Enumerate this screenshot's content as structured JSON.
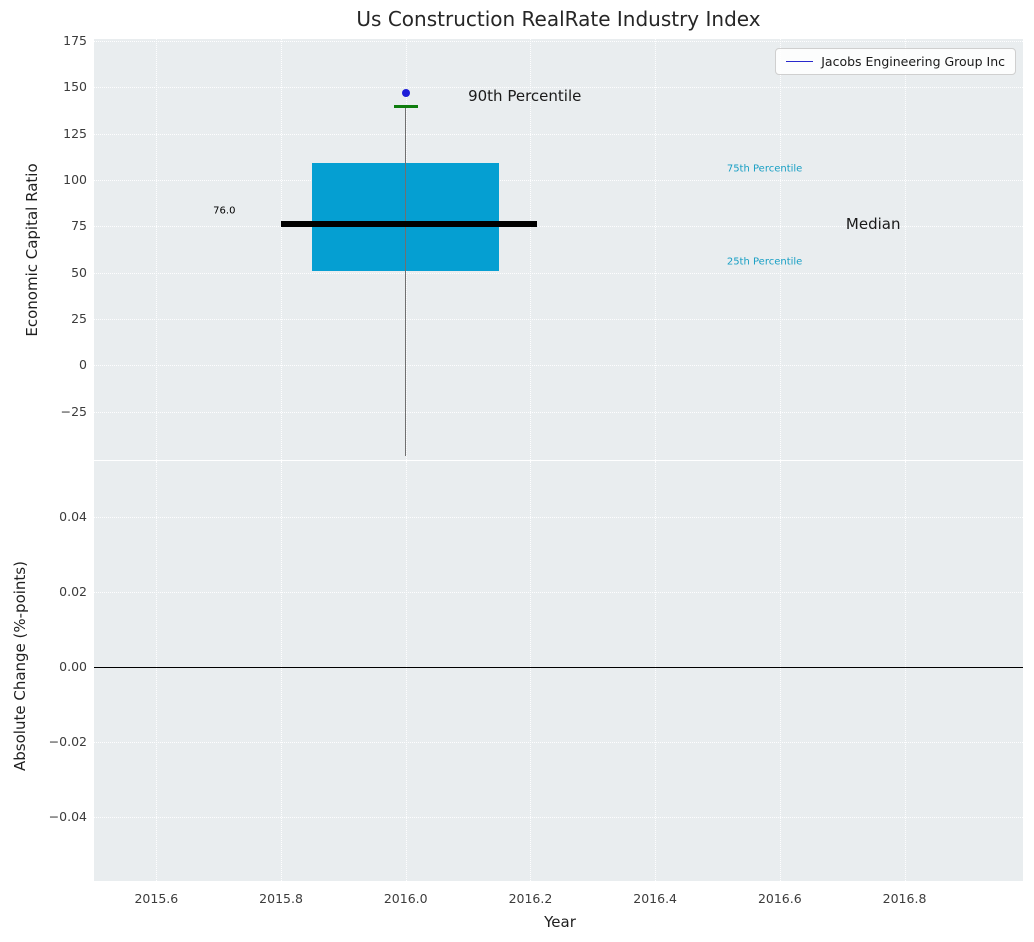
{
  "colors": {
    "plot_bg": "#e9edef",
    "grid": "#ffffff",
    "tick_text": "#3c3c3c"
  },
  "chart_data": [
    {
      "type": "box",
      "title": "Us Construction RealRate Industry Index",
      "ylabel": "Economic Capital Ratio",
      "xlim": [
        2015.5,
        2016.99
      ],
      "ylim": [
        -51,
        176
      ],
      "grid": true,
      "legend": {
        "position": "upper right",
        "entries": [
          {
            "label": "Jacobs Engineering Group Inc",
            "color": "#2828cc"
          }
        ]
      },
      "yticks": [
        {
          "value": 175,
          "label": "175"
        },
        {
          "value": 150,
          "label": "150"
        },
        {
          "value": 125,
          "label": "125"
        },
        {
          "value": 100,
          "label": "100"
        },
        {
          "value": 75,
          "label": "75"
        },
        {
          "value": 50,
          "label": "50"
        },
        {
          "value": 25,
          "label": "25"
        },
        {
          "value": 0,
          "label": "0"
        },
        {
          "value": -25,
          "label": "−25"
        }
      ],
      "box": {
        "x": 2016.0,
        "box_width": 0.3,
        "q1": 51,
        "median": 76,
        "q3": 109,
        "p90": 140,
        "whisker_low": -49,
        "median_line": {
          "x1": 2015.8,
          "x2": 2016.21
        },
        "colors": {
          "fill": "#059fd2",
          "median": "#000000",
          "cap": "#0e7d0e",
          "whisker": "#707070"
        }
      },
      "point": {
        "x": 2016.0,
        "value": 147,
        "color": "#1d1dd8",
        "series": "Jacobs Engineering Group Inc"
      },
      "annotations": [
        {
          "text": "76.0",
          "x": 2015.709,
          "y": 83,
          "color": "#000000",
          "size": 10,
          "align": "center"
        },
        {
          "text": "90th Percentile",
          "x": 2016.1,
          "y": 145,
          "color": "#1a1a1a",
          "size": 15,
          "align": "left"
        },
        {
          "text": "75th Percentile",
          "x": 2016.515,
          "y": 106,
          "color": "#189fc4",
          "size": 10,
          "align": "left"
        },
        {
          "text": "Median",
          "x": 2016.706,
          "y": 76,
          "color": "#1a1a1a",
          "size": 15,
          "align": "left"
        },
        {
          "text": "25th Percentile",
          "x": 2016.515,
          "y": 56,
          "color": "#189fc4",
          "size": 10,
          "align": "left"
        }
      ]
    },
    {
      "type": "line",
      "ylabel": "Absolute Change (%-points)",
      "xlabel": "Year",
      "xlim": [
        2015.5,
        2016.99
      ],
      "ylim": [
        -0.057,
        0.055
      ],
      "grid": true,
      "zero_line": {
        "y": 0,
        "color": "#000000"
      },
      "yticks": [
        {
          "value": 0.04,
          "label": "0.04"
        },
        {
          "value": 0.02,
          "label": "0.02"
        },
        {
          "value": 0,
          "label": "0.00"
        },
        {
          "value": -0.02,
          "label": "−0.02"
        },
        {
          "value": -0.04,
          "label": "−0.04"
        }
      ],
      "xticks": [
        {
          "value": 2015.6,
          "label": "2015.6"
        },
        {
          "value": 2015.8,
          "label": "2015.8"
        },
        {
          "value": 2016.0,
          "label": "2016.0"
        },
        {
          "value": 2016.2,
          "label": "2016.2"
        },
        {
          "value": 2016.4,
          "label": "2016.4"
        },
        {
          "value": 2016.6,
          "label": "2016.6"
        },
        {
          "value": 2016.8,
          "label": "2016.8"
        }
      ],
      "series": []
    }
  ]
}
